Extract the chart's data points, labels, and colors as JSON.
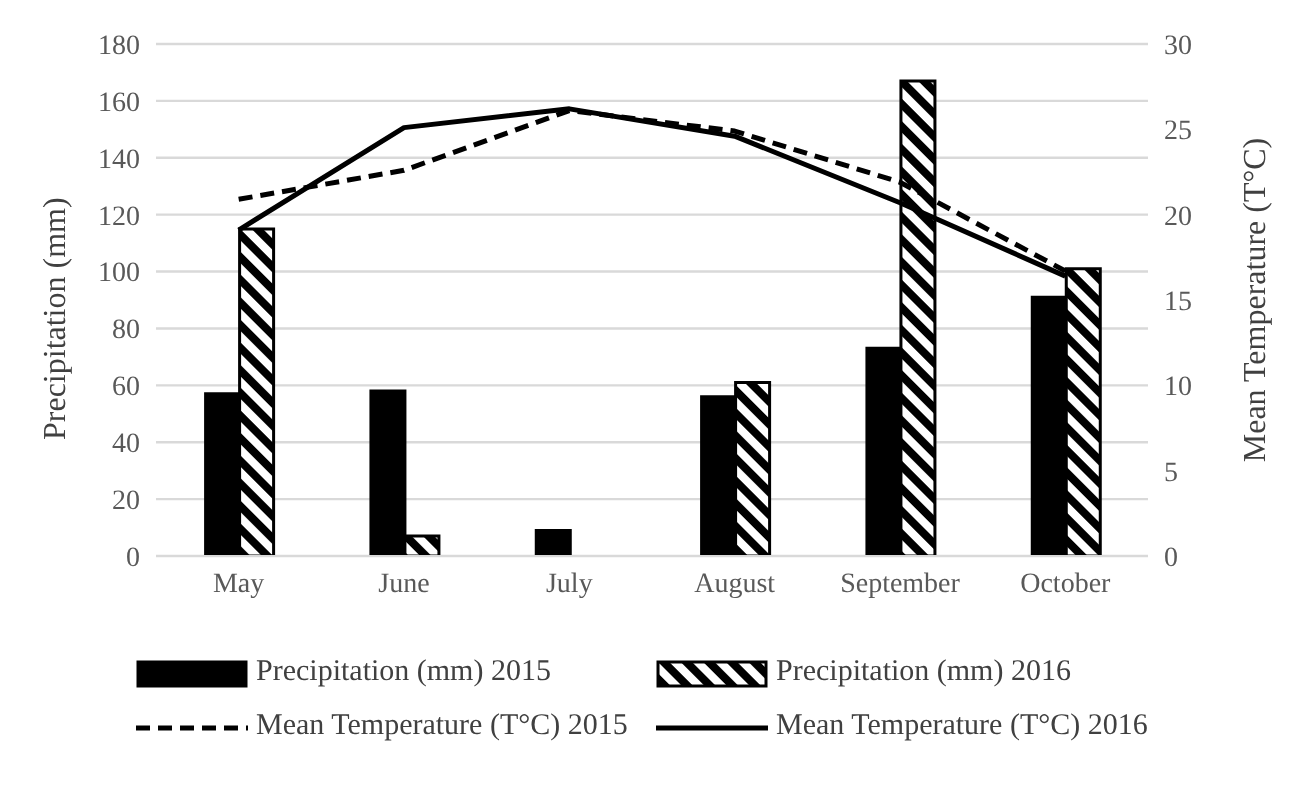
{
  "chart_data": {
    "type": "bar",
    "ylabel": "Precipitation (mm)",
    "y2label": "Mean Temperature (T°C)",
    "categories": [
      "May",
      "June",
      "July",
      "August",
      "September",
      "October"
    ],
    "series": [
      {
        "name": "Precipitation (mm) 2015",
        "color": "#000000",
        "values": [
          57,
          58,
          9,
          56,
          73,
          91
        ]
      },
      {
        "name": "Precipitation (mm) 2016",
        "color": "#000000",
        "values": [
          115,
          7,
          0,
          61,
          167,
          101
        ]
      },
      {
        "name": "Mean Temperature (T°C) 2015",
        "type": "line",
        "axis": "y2",
        "line_style": "dashed",
        "color": "#000000",
        "values": [
          20.9,
          22.6,
          26.1,
          24.9,
          21.9,
          16.7
        ]
      },
      {
        "name": "Mean Temperature (T°C) 2016",
        "type": "line",
        "axis": "y2",
        "line_style": "solid",
        "color": "#000000",
        "values": [
          19.1,
          25.1,
          26.2,
          24.6,
          20.7,
          16.4
        ]
      }
    ],
    "ylim": [
      0,
      180
    ],
    "yticks": [
      0,
      20,
      40,
      60,
      80,
      100,
      120,
      140,
      160,
      180
    ],
    "y2lim": [
      0,
      30
    ],
    "y2ticks": [
      0,
      5,
      10,
      15,
      20,
      25,
      30
    ],
    "grid": "y",
    "legend": "bottom",
    "marker": "none"
  }
}
